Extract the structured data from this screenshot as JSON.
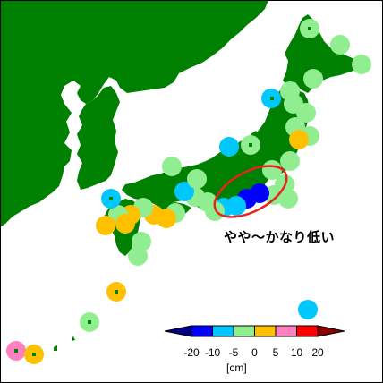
{
  "annotation": {
    "text": "やや～かなり低い",
    "ellipse_color": "#e8231e"
  },
  "colors": {
    "land": "#008000",
    "sea": "#ffffff"
  },
  "legend": {
    "ticks": [
      "-20",
      "-10",
      "-5",
      "0",
      "5",
      "10",
      "20"
    ],
    "unit": "[cm]",
    "bins": [
      {
        "range": "< -20",
        "color": "#00008b"
      },
      {
        "range": "-20 to -10",
        "color": "#0000ff"
      },
      {
        "range": "-10 to -5",
        "color": "#00c8ff"
      },
      {
        "range": "-5 to 0",
        "color": "#90ee90"
      },
      {
        "range": "0 to 5",
        "color": "#ffc000"
      },
      {
        "range": "5 to 10",
        "color": "#ff80c0"
      },
      {
        "range": "10 to 20",
        "color": "#ff0000"
      },
      {
        "range": "> 20",
        "color": "#8b0000"
      }
    ]
  },
  "stations": [
    {
      "cat": "-5 to 0"
    },
    {
      "cat": "-5 to 0"
    },
    {
      "cat": "-5 to 0"
    },
    {
      "cat": "-5 to 0"
    },
    {
      "cat": "-5 to 0"
    },
    {
      "cat": "-5 to 0"
    },
    {
      "cat": "-10 to -5"
    },
    {
      "cat": "-5 to 0"
    },
    {
      "cat": "-5 to 0"
    },
    {
      "cat": "-5 to 0"
    },
    {
      "cat": "-5 to 0"
    },
    {
      "cat": "0 to 5"
    },
    {
      "cat": "-10 to -5"
    },
    {
      "cat": "-5 to 0"
    },
    {
      "cat": "-5 to 0"
    },
    {
      "cat": "-5 to 0"
    },
    {
      "cat": "-5 to 0"
    },
    {
      "cat": "-5 to 0"
    },
    {
      "cat": "-20 to -10"
    },
    {
      "cat": "-20 to -10"
    },
    {
      "cat": "-10 to -5"
    },
    {
      "cat": "-10 to -5"
    },
    {
      "cat": "-5 to 0"
    },
    {
      "cat": "-5 to 0"
    },
    {
      "cat": "-5 to 0"
    },
    {
      "cat": "-10 to -5"
    },
    {
      "cat": "-5 to 0"
    },
    {
      "cat": "0 to 5"
    },
    {
      "cat": "0 to 5"
    },
    {
      "cat": "-5 to 0"
    },
    {
      "cat": "0 to 5"
    },
    {
      "cat": "-5 to 0"
    },
    {
      "cat": "0 to 5"
    },
    {
      "cat": "0 to 5"
    },
    {
      "cat": "-5 to 0"
    },
    {
      "cat": "-5 to 0"
    },
    {
      "cat": "0 to 5"
    },
    {
      "cat": "-5 to 0"
    },
    {
      "cat": "-10 to -5"
    },
    {
      "cat": "5 to 10"
    },
    {
      "cat": "0 to 5"
    },
    {
      "cat": "-5 to 0"
    },
    {
      "cat": "-10 to -5"
    },
    {
      "cat": "-5 to 0"
    }
  ]
}
